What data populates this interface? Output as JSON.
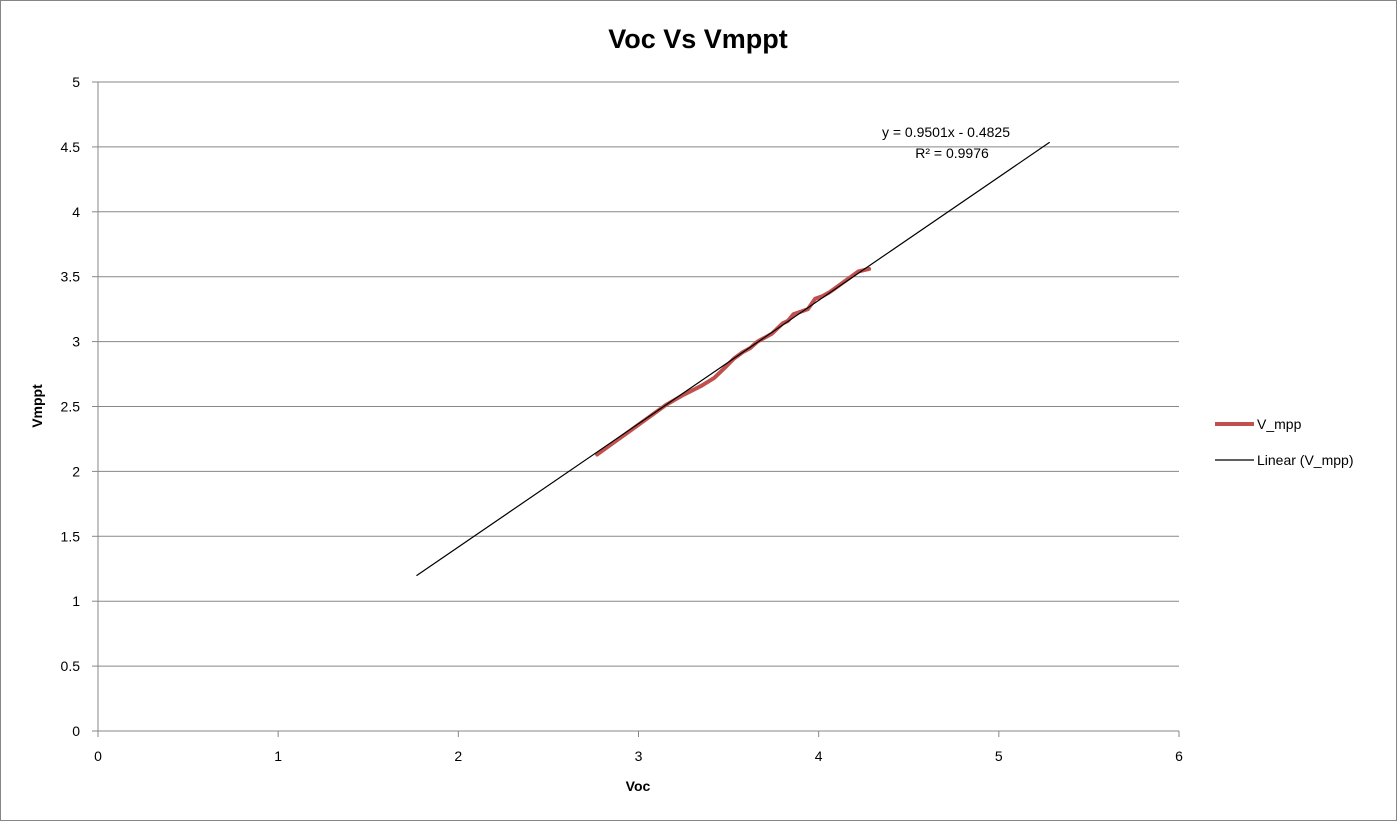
{
  "chart_data": {
    "type": "line",
    "title": "Voc Vs Vmppt",
    "xlabel": "Voc",
    "ylabel": "Vmppt",
    "xlim": [
      0,
      6
    ],
    "ylim": [
      0,
      5
    ],
    "xticks": [
      "0",
      "1",
      "2",
      "3",
      "4",
      "5",
      "6"
    ],
    "yticks": [
      "0",
      "0.5",
      "1",
      "1.5",
      "2",
      "2.5",
      "3",
      "3.5",
      "4",
      "4.5",
      "5"
    ],
    "grid": "horizontal",
    "legend_position": "right",
    "series": [
      {
        "name": "V_mpp",
        "color": "#c0504d",
        "points": [
          [
            2.77,
            2.13
          ],
          [
            2.85,
            2.21
          ],
          [
            2.95,
            2.31
          ],
          [
            3.05,
            2.41
          ],
          [
            3.15,
            2.51
          ],
          [
            3.25,
            2.59
          ],
          [
            3.35,
            2.66
          ],
          [
            3.42,
            2.72
          ],
          [
            3.48,
            2.8
          ],
          [
            3.53,
            2.87
          ],
          [
            3.58,
            2.92
          ],
          [
            3.62,
            2.95
          ],
          [
            3.66,
            3.0
          ],
          [
            3.7,
            3.03
          ],
          [
            3.74,
            3.06
          ],
          [
            3.77,
            3.1
          ],
          [
            3.8,
            3.14
          ],
          [
            3.83,
            3.16
          ],
          [
            3.86,
            3.21
          ],
          [
            3.9,
            3.23
          ],
          [
            3.94,
            3.25
          ],
          [
            3.98,
            3.33
          ],
          [
            4.02,
            3.35
          ],
          [
            4.06,
            3.38
          ],
          [
            4.1,
            3.42
          ],
          [
            4.14,
            3.46
          ],
          [
            4.18,
            3.5
          ],
          [
            4.22,
            3.54
          ],
          [
            4.25,
            3.55
          ],
          [
            4.28,
            3.56
          ]
        ]
      },
      {
        "name": "Linear (V_mpp)",
        "color": "#000000",
        "points": [
          [
            1.77,
            1.199
          ],
          [
            5.28,
            4.534
          ]
        ]
      }
    ],
    "annotations": {
      "equation": "y = 0.9501x - 0.4825",
      "r_squared": "R² = 0.9976"
    }
  }
}
